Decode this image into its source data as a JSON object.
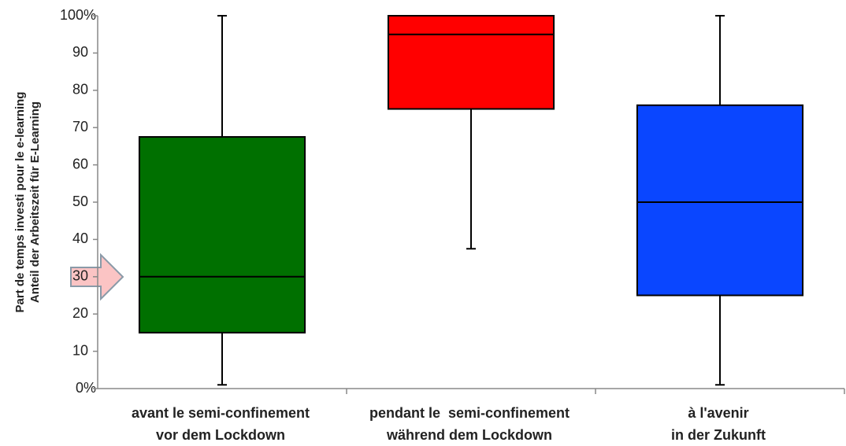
{
  "chart_data": {
    "type": "box",
    "y_label": [
      "Part de temps investi pour le e-learning",
      "Anteil der Arbeitszeit für E-Learning"
    ],
    "categories": [
      [
        "avant le semi-confinement",
        "vor dem Lockdown"
      ],
      [
        "pendant le  semi-confinement",
        "während dem Lockdown"
      ],
      [
        "à l'avenir",
        "in der Zukunft"
      ]
    ],
    "boxes": [
      {
        "color": "#007000",
        "min": 1,
        "q1": 15,
        "median": 30,
        "q3": 67.5,
        "max": 100
      },
      {
        "color": "#ff0000",
        "min": 37.5,
        "q1": 75,
        "median": 95,
        "q3": 100,
        "max": 100
      },
      {
        "color": "#0a46ff",
        "min": 1,
        "q1": 25,
        "median": 50,
        "q3": 76,
        "max": 100
      }
    ],
    "ylim": [
      0,
      100
    ],
    "yticks": [
      {
        "value": 0,
        "label": "0%"
      },
      10,
      20,
      30,
      40,
      50,
      60,
      70,
      80,
      90,
      {
        "value": 100,
        "label": "100%"
      }
    ]
  }
}
